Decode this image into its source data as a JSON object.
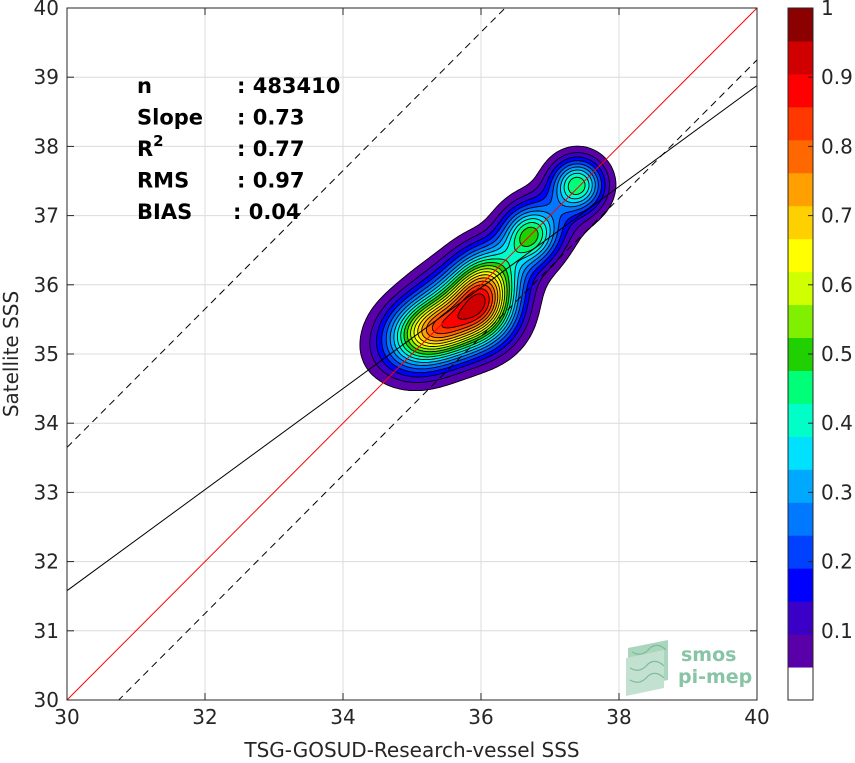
{
  "chart_data": {
    "type": "contour-density",
    "xlabel": "TSG-GOSUD-Research-vessel SSS",
    "ylabel": "Satellite SSS",
    "xlim": [
      30,
      40
    ],
    "ylim": [
      30,
      40
    ],
    "xticks": [
      30,
      32,
      34,
      36,
      38,
      40
    ],
    "yticks": [
      30,
      31,
      32,
      33,
      34,
      35,
      36,
      37,
      38,
      39,
      40
    ],
    "grid": true,
    "stats": [
      {
        "label": "n",
        "value": ": 483410"
      },
      {
        "label": "Slope",
        "value": ": 0.73"
      },
      {
        "label": "R",
        "sup": "2",
        "value": ": 0.77"
      },
      {
        "label": "RMS",
        "value": ": 0.97"
      },
      {
        "label": "BIAS",
        "value": ": 0.04"
      }
    ],
    "lines": [
      {
        "role": "identity",
        "color": "#ff0000",
        "style": "solid",
        "slope": 1,
        "intercept": 0
      },
      {
        "role": "regression",
        "color": "#000000",
        "style": "solid",
        "slope": 0.73,
        "intercept": 9.68
      },
      {
        "role": "upper-bound",
        "color": "#000000",
        "style": "dashed",
        "slope": 1,
        "intercept": 3.65
      },
      {
        "role": "lower-bound",
        "color": "#000000",
        "style": "dashed",
        "slope": 1,
        "intercept": -0.75
      }
    ],
    "density_peaks": [
      {
        "x": 35.3,
        "y": 35.35,
        "sx": 0.42,
        "sy": 0.3,
        "w": 0.95
      },
      {
        "x": 35.75,
        "y": 35.65,
        "sx": 0.45,
        "sy": 0.38,
        "w": 0.8
      },
      {
        "x": 36.05,
        "y": 35.85,
        "sx": 0.32,
        "sy": 0.4,
        "w": 0.92
      },
      {
        "x": 35.0,
        "y": 35.0,
        "sx": 0.4,
        "sy": 0.3,
        "w": 0.35
      },
      {
        "x": 36.7,
        "y": 36.7,
        "sx": 0.28,
        "sy": 0.28,
        "w": 0.78
      },
      {
        "x": 37.4,
        "y": 37.45,
        "sx": 0.26,
        "sy": 0.26,
        "w": 0.82
      },
      {
        "x": 36.3,
        "y": 36.25,
        "sx": 0.35,
        "sy": 0.3,
        "w": 0.3
      },
      {
        "x": 37.0,
        "y": 37.0,
        "sx": 0.35,
        "sy": 0.3,
        "w": 0.22
      }
    ],
    "contour_levels": [
      0.05,
      0.1,
      0.15,
      0.2,
      0.25,
      0.3,
      0.35,
      0.4,
      0.45,
      0.5,
      0.55,
      0.6,
      0.65,
      0.7,
      0.75,
      0.8,
      0.85,
      0.9,
      0.95
    ],
    "colorbar": {
      "min": 0,
      "max": 1,
      "ticks": [
        "0.1",
        "0.2",
        "0.3",
        "0.4",
        "0.5",
        "0.6",
        "0.7",
        "0.8",
        "0.9",
        "1"
      ],
      "colors": [
        "#ffffff",
        "#5a00a8",
        "#3a00c8",
        "#0000ff",
        "#0040ff",
        "#0078ff",
        "#00a8ff",
        "#00e0ff",
        "#00ffc8",
        "#00ff78",
        "#20d000",
        "#80f000",
        "#d0ff00",
        "#ffff00",
        "#ffd000",
        "#ffa000",
        "#ff6800",
        "#ff3800",
        "#ff0000",
        "#d00000",
        "#8b0000"
      ]
    }
  },
  "logo": {
    "line1": "smos",
    "line2": "pi-mep",
    "color": "#7fbf9f"
  }
}
